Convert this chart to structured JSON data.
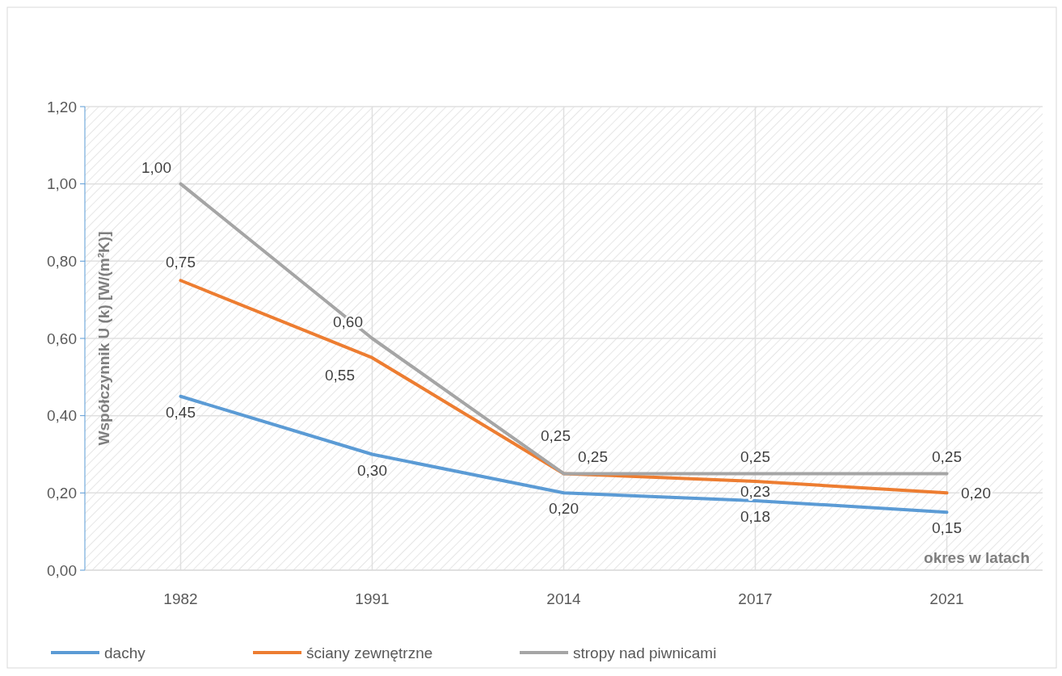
{
  "chart_data": {
    "type": "line",
    "xlabel": "okres w latach",
    "ylabel": "Współczynnik U (k) [W/(m²K)]",
    "categories": [
      "1982",
      "1991",
      "2014",
      "2017",
      "2021"
    ],
    "series": [
      {
        "name": "dachy",
        "color": "#5b9bd5",
        "values": [
          0.45,
          0.3,
          0.2,
          0.18,
          0.15
        ],
        "value_labels": [
          "0,45",
          "0,30",
          "0,20",
          "0,18",
          "0,15"
        ]
      },
      {
        "name": "ściany zewnętrzne",
        "color": "#ed7d31",
        "values": [
          0.75,
          0.55,
          0.25,
          0.23,
          0.2
        ],
        "value_labels": [
          "0,75",
          "0,55",
          "0,25",
          "0,23",
          "0,20"
        ]
      },
      {
        "name": "stropy nad piwnicami",
        "color": "#a5a5a5",
        "values": [
          1.0,
          0.6,
          0.25,
          0.25,
          0.25
        ],
        "value_labels": [
          "1,00",
          "0,60",
          "0,25",
          "0,25",
          "0,25"
        ]
      }
    ],
    "ylim": [
      0,
      1.2
    ],
    "yticks": [
      {
        "value": 0,
        "label": "0,00"
      },
      {
        "value": 0.2,
        "label": "0,20"
      },
      {
        "value": 0.4,
        "label": "0,40"
      },
      {
        "value": 0.6,
        "label": "0,60"
      },
      {
        "value": 0.8,
        "label": "0,80"
      },
      {
        "value": 1.0,
        "label": "1,00"
      },
      {
        "value": 1.2,
        "label": "1,20"
      }
    ],
    "grid": true,
    "legend": "bottom",
    "marker": "none",
    "line_style": "solid"
  }
}
